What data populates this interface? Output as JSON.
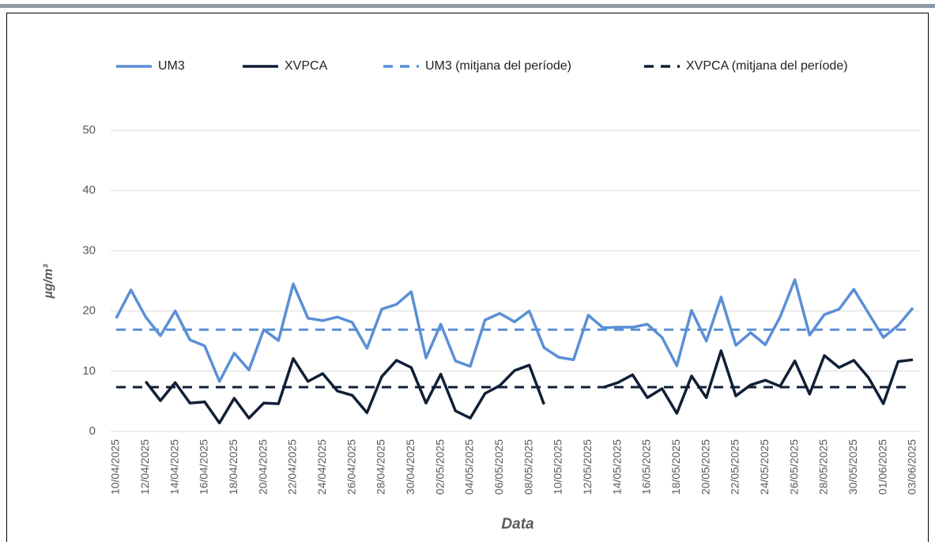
{
  "chart_data": {
    "type": "line",
    "xlabel": "Data",
    "ylabel": "µg/m³",
    "categories": [
      "10/04/2025",
      null,
      "12/04/2025",
      null,
      "14/04/2025",
      null,
      "16/04/2025",
      null,
      "18/04/2025",
      null,
      "20/04/2025",
      null,
      "22/04/2025",
      null,
      "24/04/2025",
      null,
      "26/04/2025",
      null,
      "28/04/2025",
      null,
      "30/04/2025",
      null,
      "02/05/2025",
      null,
      "04/05/2025",
      null,
      "06/05/2025",
      null,
      "08/05/2025",
      null,
      "10/05/2025",
      null,
      "12/05/2025",
      null,
      "14/05/2025",
      null,
      "16/05/2025",
      null,
      "18/05/2025",
      null,
      "20/05/2025",
      null,
      "22/05/2025",
      null,
      "24/05/2025",
      null,
      "26/05/2025",
      null,
      "28/05/2025",
      null,
      "30/05/2025",
      null,
      "01/06/2025",
      null,
      "03/06/2025"
    ],
    "series": [
      {
        "name": "UM3",
        "color": "#5a8fd6",
        "values": [
          18.8,
          23.5,
          19,
          15.9,
          20,
          15.2,
          14.2,
          8.3,
          13,
          10.2,
          16.9,
          15.1,
          24.5,
          18.8,
          18.4,
          19,
          18.1,
          13.8,
          20.3,
          21.1,
          23.2,
          12.2,
          17.8,
          11.7,
          10.8,
          18.5,
          19.6,
          18.2,
          20,
          13.9,
          12.3,
          11.9,
          19.3,
          17.2,
          17.3,
          17.3,
          17.8,
          15.6,
          10.9,
          20.1,
          15,
          22.3,
          14.3,
          16.4,
          14.4,
          19,
          25.2,
          16,
          19.4,
          20.3,
          23.6,
          19.6,
          15.6,
          17.6,
          20.5
        ]
      },
      {
        "name": "XVPCA",
        "color": "#0f1f36",
        "values": [
          null,
          null,
          8.3,
          5.1,
          8.1,
          4.7,
          4.9,
          1.4,
          5.5,
          2.2,
          4.7,
          4.6,
          12.1,
          8.3,
          9.6,
          6.7,
          6,
          3.1,
          9.1,
          11.8,
          10.6,
          4.7,
          9.5,
          3.4,
          2.2,
          6.3,
          7.6,
          10.1,
          11,
          4.5,
          null,
          null,
          null,
          7.3,
          8.1,
          9.4,
          5.6,
          7.1,
          3,
          9.2,
          5.6,
          13.4,
          5.9,
          7.7,
          8.5,
          7.5,
          11.7,
          6.2,
          12.6,
          10.6,
          11.8,
          8.9,
          4.6,
          11.6,
          11.9
        ]
      },
      {
        "name": "UM3 (mitjana del període)",
        "color": "#5a8fd6",
        "dashed": true,
        "value": 16.9
      },
      {
        "name": "XVPCA (mitjana del període)",
        "color": "#0f1f36",
        "dashed": true,
        "value": 7.35
      }
    ],
    "ylim": [
      0,
      50
    ],
    "yticks": [
      0,
      10,
      20,
      30,
      40,
      50
    ],
    "grid": true,
    "legend": "top"
  }
}
